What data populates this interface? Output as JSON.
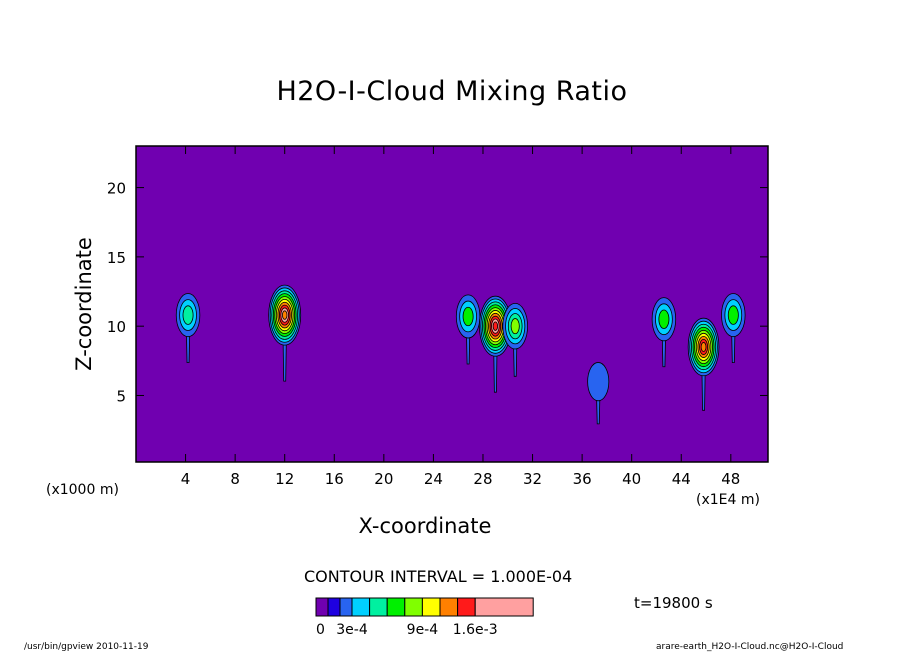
{
  "chart_data": {
    "type": "heatmap",
    "title": "H2O-I-Cloud Mixing Ratio",
    "xlabel": "X-coordinate",
    "ylabel": "Z-coordinate",
    "x_unit_left": "(x1000 m)",
    "x_unit_right": "(x1E4 m)",
    "xlim": [
      0,
      51
    ],
    "ylim": [
      0.2,
      23
    ],
    "x_ticks": [
      "4",
      "8",
      "12",
      "16",
      "20",
      "24",
      "28",
      "32",
      "36",
      "40",
      "44",
      "48"
    ],
    "x_tick_values": [
      4,
      8,
      12,
      16,
      20,
      24,
      28,
      32,
      36,
      40,
      44,
      48
    ],
    "y_ticks": [
      "5",
      "10",
      "15",
      "20"
    ],
    "y_tick_values": [
      5,
      10,
      15,
      20
    ],
    "background_color": "#7000b0",
    "contour_interval": "CONTOUR INTERVAL = 1.000E-04",
    "time": "t=19800 s",
    "colorbar": {
      "colors": [
        "#7000b0",
        "#1e00e0",
        "#2864f0",
        "#00d0ff",
        "#00f0a0",
        "#00f000",
        "#80ff00",
        "#ffff00",
        "#ff8000",
        "#ff1a1a",
        "#ffa0a0"
      ],
      "labels": [
        "0",
        "3e-4",
        "9e-4",
        "1.6e-3"
      ],
      "label_after_segment": [
        0,
        2,
        6,
        9
      ]
    },
    "features": [
      {
        "x": 4.2,
        "z": 10.8,
        "peak": 0.0005,
        "core_color": "#00f0a0"
      },
      {
        "x": 12.0,
        "z": 10.8,
        "peak": 0.0015,
        "core_color": "#ff8000"
      },
      {
        "x": 26.8,
        "z": 10.7,
        "peak": 0.0005,
        "core_color": "#00f000"
      },
      {
        "x": 29.0,
        "z": 10.0,
        "peak": 0.0016,
        "core_color": "#ff1a1a"
      },
      {
        "x": 30.6,
        "z": 10.0,
        "peak": 0.0006,
        "core_color": "#80ff00"
      },
      {
        "x": 42.6,
        "z": 10.5,
        "peak": 0.0005,
        "core_color": "#00f000"
      },
      {
        "x": 45.8,
        "z": 8.5,
        "peak": 0.0013,
        "core_color": "#ff8000"
      },
      {
        "x": 48.2,
        "z": 10.8,
        "peak": 0.0005,
        "core_color": "#00f000"
      },
      {
        "x": 37.3,
        "z": 6.0,
        "peak": 0.0002,
        "core_color": "#2864f0"
      }
    ]
  },
  "footer": {
    "left": "/usr/bin/gpview   2010-11-19",
    "right": "arare-earth_H2O-I-Cloud.nc@H2O-I-Cloud"
  }
}
